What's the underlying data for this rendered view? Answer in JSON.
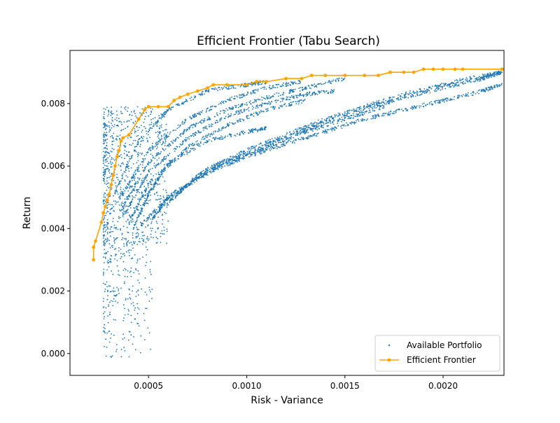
{
  "chart_data": {
    "type": "scatter",
    "title": "Efficient Frontier (Tabu Search)",
    "xlabel": "Risk - Variance",
    "ylabel": "Return",
    "xlim": [
      0.0001,
      0.00231
    ],
    "ylim": [
      -0.0007,
      0.0097
    ],
    "x_ticks": [
      {
        "value": 0.0005,
        "label": "0.0005"
      },
      {
        "value": 0.001,
        "label": "0.0010"
      },
      {
        "value": 0.0015,
        "label": "0.0015"
      },
      {
        "value": 0.002,
        "label": "0.0020"
      }
    ],
    "y_ticks": [
      {
        "value": 0.0,
        "label": "0.000"
      },
      {
        "value": 0.002,
        "label": "0.002"
      },
      {
        "value": 0.004,
        "label": "0.004"
      },
      {
        "value": 0.006,
        "label": "0.006"
      },
      {
        "value": 0.008,
        "label": "0.008"
      }
    ],
    "grid": false,
    "legend_position": "lower-right",
    "series": [
      {
        "name": "Available Portfolio",
        "kind": "scatter",
        "color": "#1f77b4",
        "clusters": [
          {
            "description": "low-return tail",
            "x_range": [
              0.00027,
              0.00052
            ],
            "y_range": [
              -0.0002,
              0.0035
            ]
          },
          {
            "description": "dense core",
            "x_range": [
              0.00027,
              0.0006
            ],
            "y_range": [
              0.0035,
              0.0079
            ]
          }
        ],
        "curves": [
          {
            "x": [
              0.00032,
              0.00045,
              0.0006,
              0.0008,
              0.001,
              0.0011
            ],
            "y": [
              0.005,
              0.0068,
              0.0078,
              0.0084,
              0.0086,
              0.0087
            ]
          },
          {
            "x": [
              0.00034,
              0.0005,
              0.0007,
              0.0009,
              0.0011,
              0.00128
            ],
            "y": [
              0.0048,
              0.0065,
              0.0075,
              0.0081,
              0.0085,
              0.0087
            ]
          },
          {
            "x": [
              0.00036,
              0.0005,
              0.0007,
              0.0009,
              0.0011,
              0.0013,
              0.0015
            ],
            "y": [
              0.0046,
              0.0061,
              0.0072,
              0.0078,
              0.0082,
              0.0085,
              0.0088
            ]
          },
          {
            "x": [
              0.00038,
              0.0005,
              0.0007,
              0.0009,
              0.0011,
              0.0013,
              0.00145
            ],
            "y": [
              0.0045,
              0.0058,
              0.0069,
              0.0076,
              0.008,
              0.0083,
              0.0084
            ]
          },
          {
            "x": [
              0.0004,
              0.0005,
              0.0007,
              0.0009,
              0.0011,
              0.0013
            ],
            "y": [
              0.0042,
              0.0054,
              0.0066,
              0.0073,
              0.0078,
              0.0081
            ]
          },
          {
            "x": [
              0.00042,
              0.0005,
              0.0006,
              0.0008,
              0.001,
              0.0011
            ],
            "y": [
              0.004,
              0.0051,
              0.0061,
              0.0068,
              0.0071,
              0.0072
            ]
          },
          {
            "x": [
              0.00046,
              0.0006,
              0.0008,
              0.001,
              0.0012,
              0.0014,
              0.0016,
              0.0018,
              0.002,
              0.0022,
              0.0023
            ],
            "y": [
              0.0041,
              0.005,
              0.0059,
              0.0065,
              0.007,
              0.0075,
              0.0079,
              0.0083,
              0.0086,
              0.0089,
              0.009
            ]
          },
          {
            "x": [
              0.00052,
              0.0006,
              0.0008,
              0.001,
              0.0012,
              0.0014,
              0.0016,
              0.0018,
              0.002,
              0.0022,
              0.0023
            ],
            "y": [
              0.0043,
              0.005,
              0.0058,
              0.0063,
              0.0067,
              0.0071,
              0.0075,
              0.0078,
              0.0081,
              0.0084,
              0.0086
            ]
          },
          {
            "x": [
              0.00058,
              0.0007,
              0.0009,
              0.0011,
              0.0013,
              0.0015,
              0.0017
            ],
            "y": [
              0.0047,
              0.0054,
              0.0061,
              0.0066,
              0.0071,
              0.0075,
              0.0079
            ]
          },
          {
            "x": [
              0.00066,
              0.0008,
              0.001,
              0.0012,
              0.0014,
              0.0016,
              0.0018,
              0.002,
              0.0022,
              0.0023
            ],
            "y": [
              0.0052,
              0.0059,
              0.0064,
              0.0069,
              0.0074,
              0.0078,
              0.0082,
              0.0085,
              0.0088,
              0.009
            ]
          }
        ]
      },
      {
        "name": "Efficient Frontier",
        "kind": "line-marker",
        "color": "#ffa500",
        "x": [
          0.00022,
          0.00022,
          0.00023,
          0.00026,
          0.00027,
          0.00028,
          0.00029,
          0.0003,
          0.00031,
          0.00032,
          0.00033,
          0.00034,
          0.00035,
          0.00036,
          0.00037,
          0.0004,
          0.00045,
          0.00048,
          0.0005,
          0.00055,
          0.0006,
          0.00063,
          0.00066,
          0.0007,
          0.00075,
          0.0008,
          0.00083,
          0.0009,
          0.001,
          0.00105,
          0.0011,
          0.0012,
          0.00128,
          0.00133,
          0.0014,
          0.0015,
          0.0016,
          0.00167,
          0.00173,
          0.0018,
          0.00185,
          0.0019,
          0.00195,
          0.002,
          0.00206,
          0.0021,
          0.0023
        ],
        "y": [
          0.003,
          0.0034,
          0.0036,
          0.0042,
          0.0045,
          0.0047,
          0.0049,
          0.0051,
          0.0054,
          0.0057,
          0.006,
          0.0063,
          0.0065,
          0.0068,
          0.0069,
          0.007,
          0.0075,
          0.0078,
          0.0079,
          0.0079,
          0.0079,
          0.0081,
          0.0082,
          0.0083,
          0.0084,
          0.0085,
          0.0086,
          0.0086,
          0.0086,
          0.0087,
          0.0087,
          0.0088,
          0.0088,
          0.0089,
          0.0089,
          0.0089,
          0.0089,
          0.0089,
          0.009,
          0.009,
          0.009,
          0.0091,
          0.0091,
          0.0091,
          0.0091,
          0.0091,
          0.0091
        ]
      }
    ]
  }
}
